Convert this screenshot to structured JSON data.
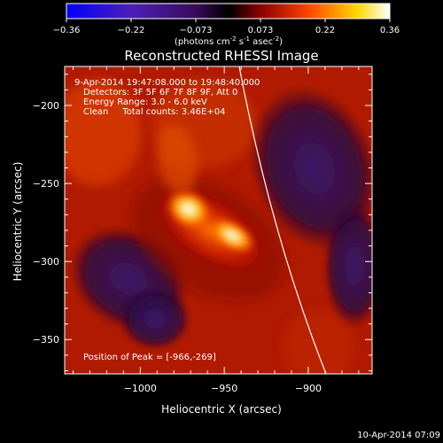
{
  "chart_data": {
    "type": "heatmap",
    "title": "Reconstructed RHESSI Image",
    "xlabel": "Heliocentric X (arcsec)",
    "ylabel": "Heliocentric Y (arcsec)",
    "xlim": [
      -1045,
      -862
    ],
    "ylim": [
      -372,
      -175
    ],
    "xticks": [
      -1000,
      -950,
      -900
    ],
    "yticks": [
      -200,
      -250,
      -300,
      -350
    ],
    "colorbar": {
      "min": -0.36,
      "max": 0.36,
      "ticks": [
        "-0.36",
        "-0.22",
        "-0.073",
        "0.073",
        "0.22",
        "0.36"
      ],
      "unit_prefix": "(photons cm",
      "unit_exp1": "-2",
      "unit_mid": " s",
      "unit_exp2": "-1",
      "unit_mid2": " asec",
      "unit_exp3": "-2",
      "unit_suffix": ")",
      "colors": [
        "#0000ff",
        "#4c1fb8",
        "#3a0a5a",
        "#000000",
        "#8b0000",
        "#ff4500",
        "#ffd700",
        "#ffffff"
      ]
    },
    "annotations": {
      "time_range": "9-Apr-2014 19:47:08.000 to 19:48:40.000",
      "detectors": "Detectors: 3F 5F 6F 7F 8F 9F, Att 0",
      "energy": "Energy Range: 3.0 - 6.0 keV",
      "clean": "Clean     Total counts: 3.46E+04",
      "peak": "Position of Peak = [-966,-269]"
    },
    "peak": {
      "x": -966,
      "y": -269
    },
    "limb_color": "#ffffff",
    "footer_timestamp": "10-Apr-2014 07:09"
  }
}
